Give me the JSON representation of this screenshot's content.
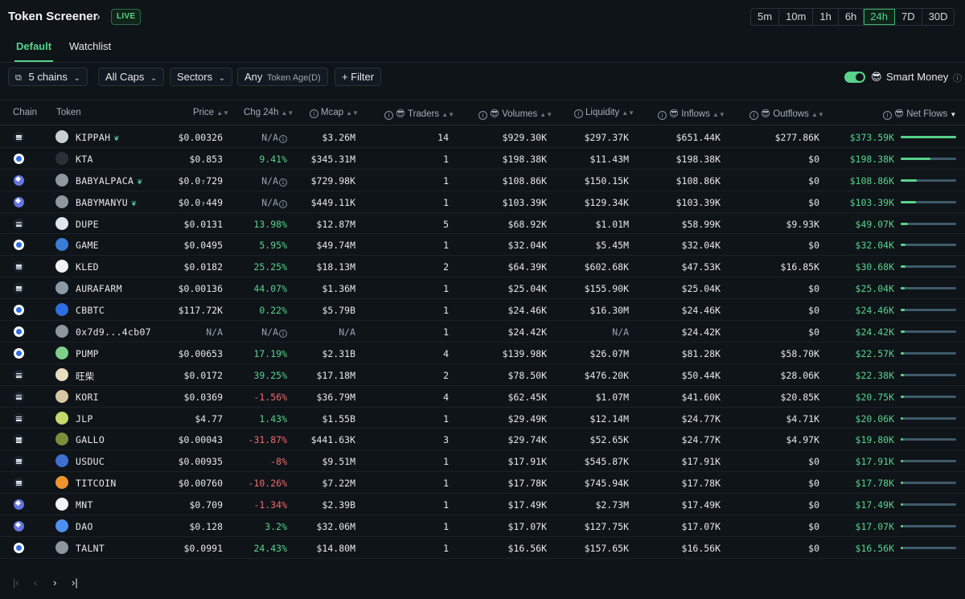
{
  "header": {
    "title": "Token Screener",
    "live_label": "LIVE",
    "timeframes": [
      "5m",
      "10m",
      "1h",
      "6h",
      "24h",
      "7D",
      "30D"
    ],
    "active_timeframe": "24h"
  },
  "tabs": [
    {
      "label": "Default",
      "active": true
    },
    {
      "label": "Watchlist",
      "active": false
    }
  ],
  "filters": {
    "chains": "5 chains",
    "caps": "All Caps",
    "sectors": "Sectors",
    "token_age_value": "Any",
    "token_age_label": "Token Age(D)",
    "filter_label": "+ Filter",
    "smart_money_label": "Smart Money",
    "smart_money_enabled": true
  },
  "columns": {
    "chain": "Chain",
    "token": "Token",
    "price": "Price",
    "chg": "Chg 24h",
    "mcap": "Mcap",
    "traders": "Traders",
    "volumes": "Volumes",
    "liquidity": "Liquidity",
    "inflows": "Inflows",
    "outflows": "Outflows",
    "netflows": "Net Flows"
  },
  "rows": [
    {
      "chain": "solana",
      "token": "KIPPAH",
      "leaf": true,
      "icon_color": "#c9d2cf",
      "price": "$0.00326",
      "chg": "N/A",
      "chg_dir": "na",
      "mcap": "$3.26M",
      "traders": "14",
      "volumes": "$929.30K",
      "liquidity": "$297.37K",
      "inflows": "$651.44K",
      "outflows": "$277.86K",
      "netflows": "$373.59K",
      "flow_ratio": 1.0
    },
    {
      "chain": "base",
      "token": "KTA",
      "leaf": false,
      "icon_color": "#2b2f36",
      "price": "$0.853",
      "chg": "9.41%",
      "chg_dir": "up",
      "mcap": "$345.31M",
      "traders": "1",
      "volumes": "$198.38K",
      "liquidity": "$11.43M",
      "inflows": "$198.38K",
      "outflows": "$0",
      "netflows": "$198.38K",
      "flow_ratio": 0.53
    },
    {
      "chain": "ethereum",
      "token": "BABYALPACA",
      "leaf": true,
      "icon_color": "#8f969e",
      "price": "$0.0₇729",
      "chg": "N/A",
      "chg_dir": "na",
      "mcap": "$729.98K",
      "traders": "1",
      "volumes": "$108.86K",
      "liquidity": "$150.15K",
      "inflows": "$108.86K",
      "outflows": "$0",
      "netflows": "$108.86K",
      "flow_ratio": 0.29
    },
    {
      "chain": "ethereum",
      "token": "BABYMANYU",
      "leaf": true,
      "icon_color": "#8f969e",
      "price": "$0.0₇449",
      "chg": "N/A",
      "chg_dir": "na",
      "mcap": "$449.11K",
      "traders": "1",
      "volumes": "$103.39K",
      "liquidity": "$129.34K",
      "inflows": "$103.39K",
      "outflows": "$0",
      "netflows": "$103.39K",
      "flow_ratio": 0.28
    },
    {
      "chain": "solana",
      "token": "DUPE",
      "leaf": false,
      "icon_color": "#dfe6ee",
      "price": "$0.0131",
      "chg": "13.98%",
      "chg_dir": "up",
      "mcap": "$12.87M",
      "traders": "5",
      "volumes": "$68.92K",
      "liquidity": "$1.01M",
      "inflows": "$58.99K",
      "outflows": "$9.93K",
      "netflows": "$49.07K",
      "flow_ratio": 0.13
    },
    {
      "chain": "base",
      "token": "GAME",
      "leaf": false,
      "icon_color": "#3c7bd6",
      "price": "$0.0495",
      "chg": "5.95%",
      "chg_dir": "up",
      "mcap": "$49.74M",
      "traders": "1",
      "volumes": "$32.04K",
      "liquidity": "$5.45M",
      "inflows": "$32.04K",
      "outflows": "$0",
      "netflows": "$32.04K",
      "flow_ratio": 0.09
    },
    {
      "chain": "solana",
      "token": "KLED",
      "leaf": false,
      "icon_color": "#f2f4f6",
      "price": "$0.0182",
      "chg": "25.25%",
      "chg_dir": "up",
      "mcap": "$18.13M",
      "traders": "2",
      "volumes": "$64.39K",
      "liquidity": "$602.68K",
      "inflows": "$47.53K",
      "outflows": "$16.85K",
      "netflows": "$30.68K",
      "flow_ratio": 0.08
    },
    {
      "chain": "solana",
      "token": "AURAFARM",
      "leaf": false,
      "icon_color": "#8c99a6",
      "price": "$0.00136",
      "chg": "44.07%",
      "chg_dir": "up",
      "mcap": "$1.36M",
      "traders": "1",
      "volumes": "$25.04K",
      "liquidity": "$155.90K",
      "inflows": "$25.04K",
      "outflows": "$0",
      "netflows": "$25.04K",
      "flow_ratio": 0.07
    },
    {
      "chain": "base",
      "token": "CBBTC",
      "leaf": false,
      "icon_color": "#2f6de1",
      "price": "$117.72K",
      "chg": "0.22%",
      "chg_dir": "up",
      "mcap": "$5.79B",
      "traders": "1",
      "volumes": "$24.46K",
      "liquidity": "$16.30M",
      "inflows": "$24.46K",
      "outflows": "$0",
      "netflows": "$24.46K",
      "flow_ratio": 0.07
    },
    {
      "chain": "base",
      "token": "0x7d9...4cb07",
      "leaf": false,
      "icon_color": "#8f969e",
      "price": "N/A",
      "chg": "N/A",
      "chg_dir": "na",
      "mcap": "N/A",
      "traders": "1",
      "volumes": "$24.42K",
      "liquidity": "N/A",
      "inflows": "$24.42K",
      "outflows": "$0",
      "netflows": "$24.42K",
      "flow_ratio": 0.07
    },
    {
      "chain": "base",
      "token": "PUMP",
      "leaf": false,
      "icon_color": "#7ed08a",
      "price": "$0.00653",
      "chg": "17.19%",
      "chg_dir": "up",
      "mcap": "$2.31B",
      "traders": "4",
      "volumes": "$139.98K",
      "liquidity": "$26.07M",
      "inflows": "$81.28K",
      "outflows": "$58.70K",
      "netflows": "$22.57K",
      "flow_ratio": 0.06
    },
    {
      "chain": "solana",
      "token": "旺柴",
      "leaf": false,
      "icon_color": "#e9dcc0",
      "price": "$0.0172",
      "chg": "39.25%",
      "chg_dir": "up",
      "mcap": "$17.18M",
      "traders": "2",
      "volumes": "$78.50K",
      "liquidity": "$476.20K",
      "inflows": "$50.44K",
      "outflows": "$28.06K",
      "netflows": "$22.38K",
      "flow_ratio": 0.06
    },
    {
      "chain": "solana",
      "token": "KORI",
      "leaf": false,
      "icon_color": "#d9c7a3",
      "price": "$0.0369",
      "chg": "-1.56%",
      "chg_dir": "down",
      "mcap": "$36.79M",
      "traders": "4",
      "volumes": "$62.45K",
      "liquidity": "$1.07M",
      "inflows": "$41.60K",
      "outflows": "$20.85K",
      "netflows": "$20.75K",
      "flow_ratio": 0.06
    },
    {
      "chain": "solana",
      "token": "JLP",
      "leaf": false,
      "icon_color": "#c7d96a",
      "price": "$4.77",
      "chg": "1.43%",
      "chg_dir": "up",
      "mcap": "$1.55B",
      "traders": "1",
      "volumes": "$29.49K",
      "liquidity": "$12.14M",
      "inflows": "$24.77K",
      "outflows": "$4.71K",
      "netflows": "$20.06K",
      "flow_ratio": 0.05
    },
    {
      "chain": "solana",
      "token": "GALLO",
      "leaf": false,
      "icon_color": "#7a8f3c",
      "price": "$0.00043",
      "chg": "-31.87%",
      "chg_dir": "down",
      "mcap": "$441.63K",
      "traders": "3",
      "volumes": "$29.74K",
      "liquidity": "$52.65K",
      "inflows": "$24.77K",
      "outflows": "$4.97K",
      "netflows": "$19.80K",
      "flow_ratio": 0.05
    },
    {
      "chain": "solana",
      "token": "USDUC",
      "leaf": false,
      "icon_color": "#3f6fd1",
      "price": "$0.00935",
      "chg": "-8%",
      "chg_dir": "down",
      "mcap": "$9.51M",
      "traders": "1",
      "volumes": "$17.91K",
      "liquidity": "$545.87K",
      "inflows": "$17.91K",
      "outflows": "$0",
      "netflows": "$17.91K",
      "flow_ratio": 0.05
    },
    {
      "chain": "solana",
      "token": "TITCOIN",
      "leaf": false,
      "icon_color": "#f0952e",
      "price": "$0.00760",
      "chg": "-10.26%",
      "chg_dir": "down",
      "mcap": "$7.22M",
      "traders": "1",
      "volumes": "$17.78K",
      "liquidity": "$745.94K",
      "inflows": "$17.78K",
      "outflows": "$0",
      "netflows": "$17.78K",
      "flow_ratio": 0.05
    },
    {
      "chain": "ethereum",
      "token": "MNT",
      "leaf": false,
      "icon_color": "#f2f4f6",
      "price": "$0.709",
      "chg": "-1.34%",
      "chg_dir": "down",
      "mcap": "$2.39B",
      "traders": "1",
      "volumes": "$17.49K",
      "liquidity": "$2.73M",
      "inflows": "$17.49K",
      "outflows": "$0",
      "netflows": "$17.49K",
      "flow_ratio": 0.05
    },
    {
      "chain": "ethereum",
      "token": "DAO",
      "leaf": false,
      "icon_color": "#4e8ff0",
      "price": "$0.128",
      "chg": "3.2%",
      "chg_dir": "up",
      "mcap": "$32.06M",
      "traders": "1",
      "volumes": "$17.07K",
      "liquidity": "$127.75K",
      "inflows": "$17.07K",
      "outflows": "$0",
      "netflows": "$17.07K",
      "flow_ratio": 0.05
    },
    {
      "chain": "base",
      "token": "TALNT",
      "leaf": false,
      "icon_color": "#8f969e",
      "price": "$0.0991",
      "chg": "24.43%",
      "chg_dir": "up",
      "mcap": "$14.80M",
      "traders": "1",
      "volumes": "$16.56K",
      "liquidity": "$157.65K",
      "inflows": "$16.56K",
      "outflows": "$0",
      "netflows": "$16.56K",
      "flow_ratio": 0.04
    }
  ],
  "pagination": {
    "first_icon": "first-page-icon",
    "prev_icon": "prev-page-icon",
    "next_icon": "next-page-icon",
    "last_icon": "last-page-icon"
  }
}
